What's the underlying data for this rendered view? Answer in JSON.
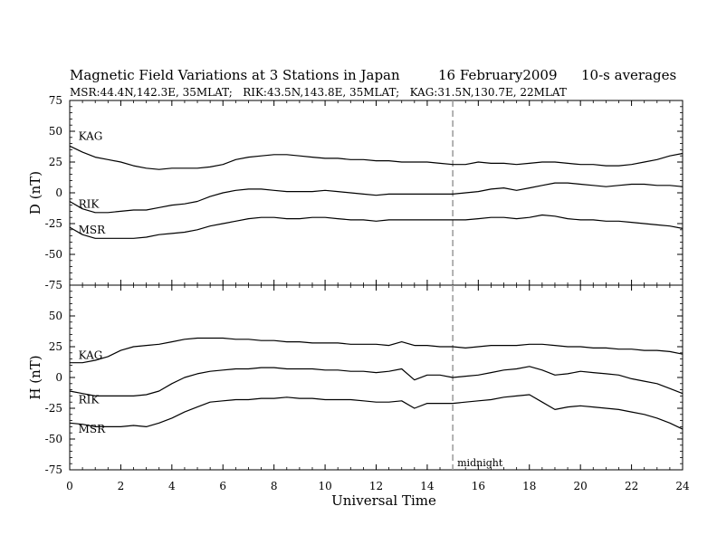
{
  "chart_data": {
    "type": "line",
    "title": "Magnetic Field Variations at 3 Stations in Japan",
    "date": "16 February2009",
    "averaging": "10-s averages",
    "subtitle": "MSR:44.4N,142.3E, 35MLAT;   RIK:43.5N,143.8E, 35MLAT;   KAG:31.5N,130.7E, 22MLAT",
    "xlabel": "Universal Time",
    "xlim": [
      0,
      24
    ],
    "xticks": [
      0,
      2,
      4,
      6,
      8,
      10,
      12,
      14,
      16,
      18,
      20,
      22,
      24
    ],
    "annotation": {
      "label": "midnight",
      "x": 15
    },
    "panels": [
      {
        "ylabel": "D (nT)",
        "ylim": [
          -75,
          75
        ],
        "yticks": [
          75,
          50,
          25,
          0,
          -25,
          -50,
          -75
        ],
        "series": [
          {
            "name": "KAG",
            "x": [
              0,
              0.5,
              1,
              1.5,
              2,
              2.5,
              3,
              3.5,
              4,
              4.5,
              5,
              5.5,
              6,
              6.5,
              7,
              7.5,
              8,
              8.5,
              9,
              9.5,
              10,
              10.5,
              11,
              11.5,
              12,
              12.5,
              13,
              13.5,
              14,
              14.5,
              15,
              15.5,
              16,
              16.5,
              17,
              17.5,
              18,
              18.5,
              19,
              19.5,
              20,
              20.5,
              21,
              21.5,
              22,
              22.5,
              23,
              23.5,
              24
            ],
            "values": [
              38,
              33,
              29,
              27,
              25,
              22,
              20,
              19,
              20,
              20,
              20,
              21,
              23,
              27,
              29,
              30,
              31,
              31,
              30,
              29,
              28,
              28,
              27,
              27,
              26,
              26,
              25,
              25,
              25,
              24,
              23,
              23,
              25,
              24,
              24,
              23,
              24,
              25,
              25,
              24,
              23,
              23,
              22,
              22,
              23,
              25,
              27,
              30,
              32
            ]
          },
          {
            "name": "RIK",
            "x": [
              0,
              0.5,
              1,
              1.5,
              2,
              2.5,
              3,
              3.5,
              4,
              4.5,
              5,
              5.5,
              6,
              6.5,
              7,
              7.5,
              8,
              8.5,
              9,
              9.5,
              10,
              10.5,
              11,
              11.5,
              12,
              12.5,
              13,
              13.5,
              14,
              14.5,
              15,
              15.5,
              16,
              16.5,
              17,
              17.5,
              18,
              18.5,
              19,
              19.5,
              20,
              20.5,
              21,
              21.5,
              22,
              22.5,
              23,
              23.5,
              24
            ],
            "values": [
              -7,
              -13,
              -16,
              -16,
              -15,
              -14,
              -14,
              -12,
              -10,
              -9,
              -7,
              -3,
              0,
              2,
              3,
              3,
              2,
              1,
              1,
              1,
              2,
              1,
              0,
              -1,
              -2,
              -1,
              -1,
              -1,
              -1,
              -1,
              -1,
              0,
              1,
              3,
              4,
              2,
              4,
              6,
              8,
              8,
              7,
              6,
              5,
              6,
              7,
              7,
              6,
              6,
              5
            ]
          },
          {
            "name": "MSR",
            "x": [
              0,
              0.5,
              1,
              1.5,
              2,
              2.5,
              3,
              3.5,
              4,
              4.5,
              5,
              5.5,
              6,
              6.5,
              7,
              7.5,
              8,
              8.5,
              9,
              9.5,
              10,
              10.5,
              11,
              11.5,
              12,
              12.5,
              13,
              13.5,
              14,
              14.5,
              15,
              15.5,
              16,
              16.5,
              17,
              17.5,
              18,
              18.5,
              19,
              19.5,
              20,
              20.5,
              21,
              21.5,
              22,
              22.5,
              23,
              23.5,
              24
            ],
            "values": [
              -28,
              -34,
              -37,
              -37,
              -37,
              -37,
              -36,
              -34,
              -33,
              -32,
              -30,
              -27,
              -25,
              -23,
              -21,
              -20,
              -20,
              -21,
              -21,
              -20,
              -20,
              -21,
              -22,
              -22,
              -23,
              -22,
              -22,
              -22,
              -22,
              -22,
              -22,
              -22,
              -21,
              -20,
              -20,
              -21,
              -20,
              -18,
              -19,
              -21,
              -22,
              -22,
              -23,
              -23,
              -24,
              -25,
              -26,
              -27,
              -29
            ]
          }
        ]
      },
      {
        "ylabel": "H (nT)",
        "ylim": [
          -75,
          75
        ],
        "yticks": [
          75,
          50,
          25,
          0,
          -25,
          -50,
          -75
        ],
        "series": [
          {
            "name": "KAG",
            "x": [
              0,
              0.5,
              1,
              1.5,
              2,
              2.5,
              3,
              3.5,
              4,
              4.5,
              5,
              5.5,
              6,
              6.5,
              7,
              7.5,
              8,
              8.5,
              9,
              9.5,
              10,
              10.5,
              11,
              11.5,
              12,
              12.5,
              13,
              13.5,
              14,
              14.5,
              15,
              15.5,
              16,
              16.5,
              17,
              17.5,
              18,
              18.5,
              19,
              19.5,
              20,
              20.5,
              21,
              21.5,
              22,
              22.5,
              23,
              23.5,
              24
            ],
            "values": [
              12,
              12,
              14,
              17,
              22,
              25,
              26,
              27,
              29,
              31,
              32,
              32,
              32,
              31,
              31,
              30,
              30,
              29,
              29,
              28,
              28,
              28,
              27,
              27,
              27,
              26,
              29,
              26,
              26,
              25,
              25,
              24,
              25,
              26,
              26,
              26,
              27,
              27,
              26,
              25,
              25,
              24,
              24,
              23,
              23,
              22,
              22,
              21,
              19
            ]
          },
          {
            "name": "RIK",
            "x": [
              0,
              0.5,
              1,
              1.5,
              2,
              2.5,
              3,
              3.5,
              4,
              4.5,
              5,
              5.5,
              6,
              6.5,
              7,
              7.5,
              8,
              8.5,
              9,
              9.5,
              10,
              10.5,
              11,
              11.5,
              12,
              12.5,
              13,
              13.5,
              14,
              14.5,
              15,
              15.5,
              16,
              16.5,
              17,
              17.5,
              18,
              18.5,
              19,
              19.5,
              20,
              20.5,
              21,
              21.5,
              22,
              22.5,
              23,
              23.5,
              24
            ],
            "values": [
              -11,
              -13,
              -15,
              -15,
              -15,
              -15,
              -14,
              -11,
              -5,
              0,
              3,
              5,
              6,
              7,
              7,
              8,
              8,
              7,
              7,
              7,
              6,
              6,
              5,
              5,
              4,
              5,
              7,
              -2,
              2,
              2,
              0,
              1,
              2,
              4,
              6,
              7,
              9,
              6,
              2,
              3,
              5,
              4,
              3,
              2,
              -1,
              -3,
              -5,
              -9,
              -13
            ]
          },
          {
            "name": "MSR",
            "x": [
              0,
              0.5,
              1,
              1.5,
              2,
              2.5,
              3,
              3.5,
              4,
              4.5,
              5,
              5.5,
              6,
              6.5,
              7,
              7.5,
              8,
              8.5,
              9,
              9.5,
              10,
              10.5,
              11,
              11.5,
              12,
              12.5,
              13,
              13.5,
              14,
              14.5,
              15,
              15.5,
              16,
              16.5,
              17,
              17.5,
              18,
              18.5,
              19,
              19.5,
              20,
              20.5,
              21,
              21.5,
              22,
              22.5,
              23,
              23.5,
              24
            ],
            "values": [
              -37,
              -38,
              -40,
              -40,
              -40,
              -39,
              -40,
              -37,
              -33,
              -28,
              -24,
              -20,
              -19,
              -18,
              -18,
              -17,
              -17,
              -16,
              -17,
              -17,
              -18,
              -18,
              -18,
              -19,
              -20,
              -20,
              -19,
              -25,
              -21,
              -21,
              -21,
              -20,
              -19,
              -18,
              -16,
              -15,
              -14,
              -20,
              -26,
              -24,
              -23,
              -24,
              -25,
              -26,
              -28,
              -30,
              -33,
              -37,
              -42
            ]
          }
        ]
      }
    ],
    "label_positions": [
      {
        "panel": 0,
        "series": "KAG",
        "x": 0.2,
        "y": 43
      },
      {
        "panel": 0,
        "series": "RIK",
        "x": 0.2,
        "y": -12
      },
      {
        "panel": 0,
        "series": "MSR",
        "x": 0.2,
        "y": -33
      },
      {
        "panel": 1,
        "series": "KAG",
        "x": 0.2,
        "y": 15
      },
      {
        "panel": 1,
        "series": "RIK",
        "x": 0.2,
        "y": -21
      },
      {
        "panel": 1,
        "series": "MSR",
        "x": 0.2,
        "y": -45
      }
    ],
    "colors": {
      "line": "#000000",
      "midline": "#999999",
      "frame": "#000000"
    }
  }
}
